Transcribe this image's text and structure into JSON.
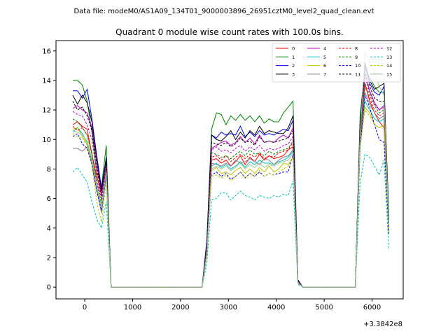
{
  "suptitle": "Data file: modeM0/AS1A09_134T01_9000003896_26951cztM0_level2_quad_clean.evt",
  "chart_data": {
    "type": "line",
    "title": "Quadrant 0 module wise count rates with 100.0s bins.",
    "xlabel": "",
    "ylabel": "",
    "x_offset_label": "+3.3842e8",
    "xlim": [
      -600,
      6650
    ],
    "ylim": [
      -0.8,
      16.7
    ],
    "x_ticks": [
      0,
      1000,
      2000,
      3000,
      4000,
      5000,
      6000
    ],
    "x_tick_labels": [
      "0",
      "1000",
      "2000",
      "3000",
      "4000",
      "5000",
      "6000"
    ],
    "y_ticks": [
      0,
      2,
      4,
      6,
      8,
      10,
      12,
      14,
      16
    ],
    "y_tick_labels": [
      "0",
      "2",
      "4",
      "6",
      "8",
      "10",
      "12",
      "14",
      "16"
    ],
    "legend_location": "upper-right",
    "legend_columns": 4,
    "series": [
      {
        "name": "0",
        "color": "#ff0000",
        "dash": "solid"
      },
      {
        "name": "1",
        "color": "#008000",
        "dash": "solid"
      },
      {
        "name": "2",
        "color": "#0000ff",
        "dash": "solid"
      },
      {
        "name": "3",
        "color": "#000000",
        "dash": "solid"
      },
      {
        "name": "4",
        "color": "#bf00bf",
        "dash": "solid"
      },
      {
        "name": "5",
        "color": "#00bfbf",
        "dash": "solid"
      },
      {
        "name": "6",
        "color": "#bfbf00",
        "dash": "solid"
      },
      {
        "name": "7",
        "color": "#808080",
        "dash": "solid"
      },
      {
        "name": "8",
        "color": "#ff0000",
        "dash": "dashed"
      },
      {
        "name": "9",
        "color": "#008000",
        "dash": "dashed"
      },
      {
        "name": "10",
        "color": "#0000ff",
        "dash": "dashed"
      },
      {
        "name": "11",
        "color": "#000000",
        "dash": "dashed"
      },
      {
        "name": "12",
        "color": "#bf00bf",
        "dash": "dashed"
      },
      {
        "name": "13",
        "color": "#00bfbf",
        "dash": "dashed"
      },
      {
        "name": "14",
        "color": "#bfbf00",
        "dash": "dashed"
      },
      {
        "name": "15",
        "color": "#98c890",
        "dash": "solid"
      }
    ],
    "segments": {
      "segment_1": {
        "x": [
          -250,
          -150,
          -50,
          50,
          150,
          250,
          350,
          450,
          550
        ],
        "description": "decline then drop to zero"
      },
      "zero_interval": {
        "x": [
          550,
          2450
        ],
        "y": 0
      },
      "segment_2": {
        "x": [
          2450,
          2550,
          2650,
          2750,
          2850,
          2950,
          3050,
          3150,
          3250,
          3350,
          3450,
          3550,
          3650,
          3750,
          3850,
          3950,
          4050,
          4150,
          4250,
          4350,
          4450,
          4550
        ]
      },
      "zero_interval_2": {
        "x": [
          4550,
          5650
        ],
        "y": 0
      },
      "segment_3": {
        "x": [
          5650,
          5750,
          5850,
          5950,
          6050,
          6150,
          6250,
          6350
        ]
      }
    },
    "values_by_series": {
      "0": {
        "seg1": [
          11.0,
          11.2,
          10.9,
          10.7,
          9.0,
          7.5,
          6.3,
          8.0,
          0.0
        ],
        "seg2": [
          0.0,
          2.5,
          8.6,
          8.7,
          8.4,
          8.6,
          8.2,
          8.5,
          8.9,
          8.3,
          8.8,
          8.5,
          9.0,
          8.6,
          8.9,
          8.7,
          8.8,
          8.9,
          9.3,
          9.5,
          0.4,
          0.0
        ],
        "seg3": [
          0.0,
          10.5,
          13.8,
          12.6,
          11.8,
          11.2,
          10.8,
          3.8
        ]
      },
      "1": {
        "seg1": [
          14.0,
          14.0,
          13.7,
          12.6,
          10.5,
          7.8,
          6.8,
          9.6,
          0.0
        ],
        "seg2": [
          0.0,
          3.2,
          10.7,
          11.8,
          11.7,
          11.0,
          11.6,
          11.3,
          11.7,
          11.3,
          11.6,
          11.2,
          11.6,
          11.1,
          11.4,
          11.2,
          11.2,
          11.8,
          12.2,
          12.6,
          0.5,
          0.0
        ],
        "seg3": [
          0.0,
          11.6,
          14.8,
          14.2,
          13.6,
          13.2,
          13.2,
          5.0
        ]
      },
      "2": {
        "seg1": [
          13.3,
          13.3,
          12.8,
          13.4,
          11.4,
          8.9,
          6.7,
          8.8,
          0.0
        ],
        "seg2": [
          0.0,
          3.1,
          10.3,
          10.1,
          10.5,
          10.3,
          10.4,
          10.3,
          10.9,
          10.2,
          10.5,
          10.2,
          10.6,
          10.3,
          10.4,
          10.3,
          10.5,
          10.7,
          10.6,
          11.3,
          0.5,
          0.0
        ],
        "seg3": [
          0.0,
          11.0,
          15.0,
          13.8,
          13.2,
          13.0,
          13.6,
          4.6
        ]
      },
      "3": {
        "seg1": [
          13.0,
          12.4,
          13.0,
          12.5,
          11.2,
          8.7,
          6.5,
          8.7,
          0.0
        ],
        "seg2": [
          0.0,
          2.9,
          10.3,
          10.0,
          9.9,
          10.2,
          10.6,
          10.0,
          10.5,
          10.1,
          10.6,
          10.3,
          10.9,
          10.4,
          10.6,
          10.5,
          10.4,
          10.4,
          10.8,
          11.6,
          0.5,
          0.0
        ],
        "seg3": [
          0.0,
          11.0,
          15.2,
          14.0,
          13.4,
          13.6,
          13.8,
          4.6
        ]
      },
      "4": {
        "seg1": [
          12.1,
          12.3,
          12.0,
          11.8,
          10.8,
          8.5,
          6.2,
          8.3,
          0.0
        ],
        "seg2": [
          0.0,
          2.8,
          9.4,
          9.6,
          9.8,
          9.9,
          9.6,
          9.8,
          10.2,
          9.8,
          10.1,
          9.7,
          10.3,
          9.8,
          9.9,
          9.8,
          10.1,
          10.3,
          10.1,
          10.8,
          0.4,
          0.0
        ],
        "seg3": [
          0.0,
          10.6,
          14.5,
          13.3,
          12.5,
          12.0,
          12.3,
          4.4
        ]
      },
      "5": {
        "seg1": [
          10.5,
          10.8,
          10.4,
          9.8,
          8.5,
          6.8,
          5.4,
          7.9,
          0.0
        ],
        "seg2": [
          0.0,
          2.3,
          8.2,
          8.4,
          8.1,
          8.3,
          8.0,
          8.2,
          8.5,
          8.1,
          8.5,
          8.3,
          8.6,
          8.4,
          8.4,
          8.3,
          8.5,
          8.6,
          8.8,
          9.2,
          0.3,
          0.0
        ],
        "seg3": [
          0.0,
          9.8,
          12.6,
          12.0,
          11.4,
          11.2,
          11.4,
          3.8
        ]
      },
      "6": {
        "seg1": [
          10.7,
          10.8,
          10.2,
          9.7,
          8.3,
          6.6,
          5.6,
          7.9,
          0.0
        ],
        "seg2": [
          0.0,
          2.2,
          7.9,
          8.1,
          7.7,
          7.8,
          7.6,
          7.9,
          8.1,
          7.7,
          8.0,
          7.7,
          8.1,
          7.8,
          8.2,
          7.8,
          8.0,
          8.4,
          8.3,
          8.8,
          0.3,
          0.0
        ],
        "seg3": [
          0.0,
          9.6,
          12.2,
          11.8,
          11.0,
          10.8,
          11.0,
          3.6
        ]
      },
      "7": {
        "seg1": [
          9.4,
          9.4,
          9.2,
          9.5,
          8.4,
          6.6,
          5.0,
          7.6,
          0.0
        ],
        "seg2": [
          0.0,
          2.4,
          8.4,
          8.3,
          8.2,
          8.4,
          8.2,
          8.6,
          8.4,
          8.5,
          8.7,
          8.5,
          8.3,
          8.7,
          8.6,
          8.3,
          8.6,
          8.8,
          8.9,
          9.3,
          0.3,
          0.0
        ],
        "seg3": [
          0.0,
          9.8,
          13.2,
          12.4,
          11.8,
          11.4,
          11.6,
          4.0
        ]
      },
      "8": {
        "seg1": [
          10.9,
          10.6,
          10.8,
          10.3,
          9.0,
          7.2,
          5.9,
          8.1,
          0.0
        ],
        "seg2": [
          0.0,
          2.5,
          8.8,
          8.9,
          8.6,
          8.9,
          8.5,
          8.8,
          9.0,
          8.7,
          9.0,
          8.8,
          9.1,
          8.7,
          8.9,
          8.8,
          9.1,
          9.2,
          9.3,
          9.8,
          0.4,
          0.0
        ],
        "seg3": [
          0.0,
          10.2,
          13.6,
          12.8,
          12.0,
          11.6,
          11.8,
          4.0
        ]
      },
      "9": {
        "seg1": [
          11.4,
          11.2,
          10.8,
          10.3,
          9.1,
          7.0,
          5.7,
          8.0,
          0.0
        ],
        "seg2": [
          0.0,
          2.6,
          9.1,
          9.0,
          8.8,
          8.9,
          8.7,
          9.0,
          9.2,
          8.9,
          9.3,
          9.0,
          9.1,
          8.9,
          9.2,
          9.0,
          9.2,
          9.3,
          9.4,
          9.9,
          0.4,
          0.0
        ],
        "seg3": [
          0.0,
          10.4,
          13.8,
          13.0,
          12.3,
          11.8,
          12.0,
          4.2
        ]
      },
      "10": {
        "seg1": [
          10.2,
          10.4,
          9.7,
          9.4,
          8.3,
          6.5,
          5.2,
          7.6,
          0.0
        ],
        "seg2": [
          0.0,
          2.2,
          7.6,
          7.8,
          7.5,
          7.7,
          7.3,
          7.5,
          7.8,
          7.4,
          7.7,
          7.5,
          7.8,
          7.5,
          7.7,
          7.6,
          7.7,
          7.8,
          7.8,
          9.0,
          0.3,
          0.0
        ],
        "seg3": [
          0.0,
          9.5,
          13.0,
          12.2,
          11.0,
          10.0,
          9.8,
          3.6
        ]
      },
      "11": {
        "seg1": [
          12.6,
          12.0,
          12.2,
          11.6,
          10.6,
          8.3,
          6.0,
          8.4,
          0.0
        ],
        "seg2": [
          0.0,
          2.8,
          9.8,
          9.7,
          9.6,
          9.8,
          9.5,
          9.7,
          10.1,
          9.8,
          9.9,
          9.6,
          10.2,
          9.8,
          9.9,
          9.8,
          9.9,
          10.0,
          10.1,
          10.6,
          0.4,
          0.0
        ],
        "seg3": [
          0.0,
          10.8,
          14.6,
          13.6,
          12.8,
          12.6,
          12.6,
          4.4
        ]
      },
      "12": {
        "seg1": [
          11.9,
          11.7,
          11.6,
          11.0,
          10.0,
          7.7,
          6.0,
          8.2,
          0.0
        ],
        "seg2": [
          0.0,
          2.7,
          9.3,
          9.5,
          9.2,
          9.3,
          9.1,
          9.4,
          9.6,
          9.2,
          9.5,
          9.3,
          9.6,
          9.2,
          9.4,
          9.3,
          9.4,
          9.6,
          9.7,
          10.2,
          0.4,
          0.0
        ],
        "seg3": [
          0.0,
          10.4,
          14.2,
          13.2,
          12.4,
          12.0,
          12.2,
          4.2
        ]
      },
      "13": {
        "seg1": [
          7.8,
          8.1,
          7.6,
          7.1,
          5.8,
          4.6,
          4.0,
          5.8,
          0.0
        ],
        "seg2": [
          0.0,
          1.6,
          5.9,
          6.0,
          6.4,
          6.4,
          5.9,
          6.2,
          6.5,
          6.2,
          6.1,
          5.9,
          6.2,
          6.1,
          6.0,
          6.2,
          6.1,
          6.3,
          6.2,
          7.2,
          0.2,
          0.0
        ],
        "seg3": [
          0.0,
          7.0,
          9.0,
          8.8,
          8.2,
          7.6,
          8.6,
          2.6
        ]
      },
      "14": {
        "seg1": [
          10.4,
          10.2,
          10.1,
          9.6,
          8.3,
          5.8,
          4.4,
          7.2,
          0.0
        ],
        "seg2": [
          0.0,
          2.1,
          7.5,
          7.6,
          7.4,
          7.6,
          7.2,
          7.5,
          7.8,
          7.4,
          7.7,
          7.5,
          7.9,
          7.5,
          7.7,
          7.6,
          7.8,
          8.0,
          8.2,
          8.8,
          0.3,
          0.0
        ],
        "seg3": [
          0.0,
          9.4,
          12.0,
          11.6,
          11.0,
          10.8,
          11.0,
          3.6
        ]
      },
      "15": {
        "seg1": [
          10.6,
          10.5,
          10.3,
          9.9,
          8.7,
          6.8,
          5.4,
          7.8,
          0.0
        ],
        "seg2": [
          0.0,
          2.3,
          8.0,
          8.2,
          8.0,
          8.2,
          7.9,
          8.1,
          8.4,
          8.0,
          8.3,
          8.1,
          8.4,
          8.1,
          8.3,
          8.2,
          8.4,
          8.5,
          8.6,
          9.1,
          0.3,
          0.0
        ],
        "seg3": [
          0.0,
          10.2,
          15.9,
          15.2,
          14.6,
          13.6,
          13.0,
          4.2
        ]
      }
    }
  }
}
